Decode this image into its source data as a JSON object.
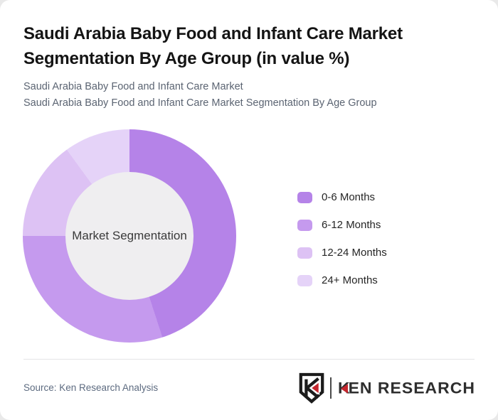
{
  "header": {
    "title": "Saudi Arabia Baby Food and Infant Care Market Segmentation By Age Group (in value %)",
    "subtitle_line1": "Saudi Arabia Baby Food and Infant Care Market",
    "subtitle_line2": "Saudi Arabia Baby Food and Infant Care Market Segmentation By Age Group"
  },
  "chart_data": {
    "type": "pie",
    "variant": "donut",
    "title": "Saudi Arabia Baby Food and Infant Care Market Segmentation By Age Group (in value %)",
    "center_label": "Market Segmentation",
    "categories": [
      "0-6 Months",
      "6-12 Months",
      "12-24 Months",
      "24+ Months"
    ],
    "values": [
      45,
      30,
      15,
      10
    ],
    "unit": "%",
    "colors": [
      "#b583e8",
      "#c59aee",
      "#ddc2f4",
      "#e5d3f8"
    ],
    "start_angle_deg": 0,
    "direction": "clockwise",
    "legend_position": "right",
    "hole_color": "#efeef0"
  },
  "footer": {
    "source_text": "Source: Ken Research Analysis",
    "logo_shield_letter": "K",
    "logo_k": "K",
    "logo_rest": "EN RESEARCH",
    "logo_accent_color": "#c4272e"
  }
}
